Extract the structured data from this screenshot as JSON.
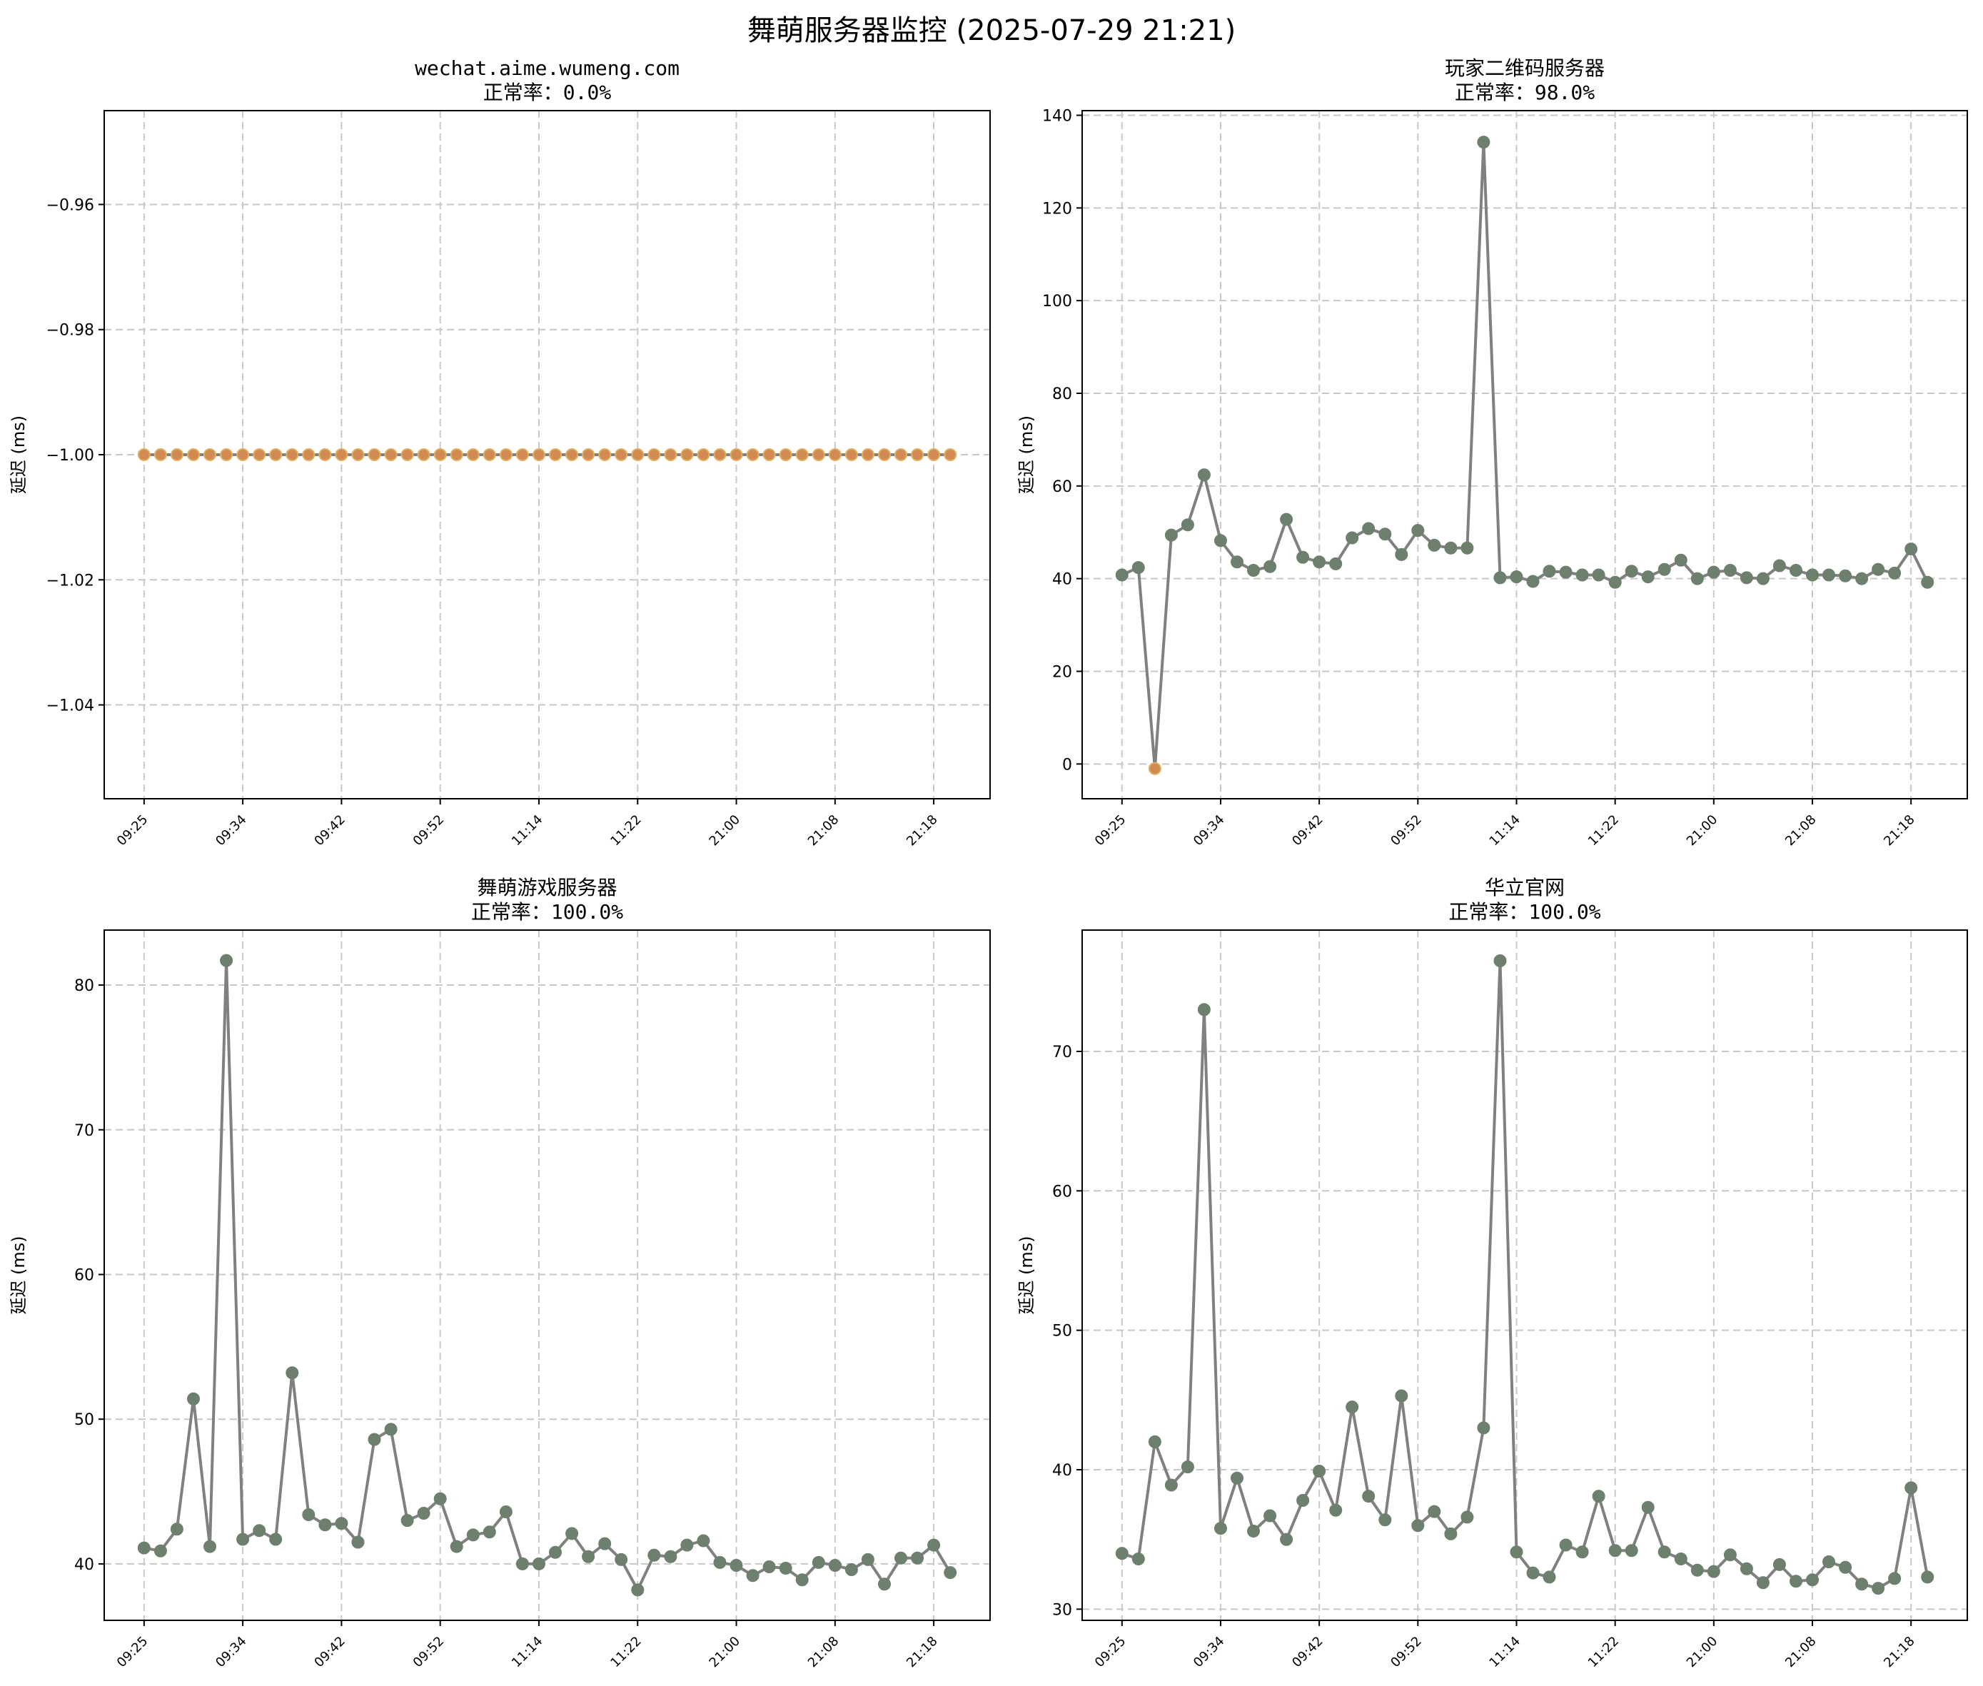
{
  "title": "舞萌服务器监控 (2025-07-29 21:21)",
  "ylabel": "延迟 (ms)",
  "colors": {
    "line": "#808080",
    "marker_ok": "#6d7f6d",
    "marker_fail": "#d08a52",
    "marker_fail_edge": "#e0b060",
    "grid": "#c8c8c8"
  },
  "x_tick_labels": [
    "09:25",
    "09:34",
    "09:42",
    "09:52",
    "11:14",
    "11:22",
    "21:00",
    "21:08",
    "21:18"
  ],
  "chart_data": [
    {
      "type": "line",
      "title": "wechat.aime.wumeng.com",
      "subtitle": "正常率：0.0%",
      "x_count": 50,
      "x_tick_indices": [
        0,
        6,
        12,
        18,
        24,
        30,
        36,
        42,
        48
      ],
      "ylim": [
        -1.055,
        -0.945
      ],
      "yticks": [
        -1.04,
        -1.02,
        -1.0,
        -0.98,
        -0.96
      ],
      "ytick_labels": [
        "−1.04",
        "−1.02",
        "−1.00",
        "−0.98",
        "−0.96"
      ],
      "grid": true,
      "status": "fail",
      "values": [
        -1,
        -1,
        -1,
        -1,
        -1,
        -1,
        -1,
        -1,
        -1,
        -1,
        -1,
        -1,
        -1,
        -1,
        -1,
        -1,
        -1,
        -1,
        -1,
        -1,
        -1,
        -1,
        -1,
        -1,
        -1,
        -1,
        -1,
        -1,
        -1,
        -1,
        -1,
        -1,
        -1,
        -1,
        -1,
        -1,
        -1,
        -1,
        -1,
        -1,
        -1,
        -1,
        -1,
        -1,
        -1,
        -1,
        -1,
        -1,
        -1,
        -1
      ]
    },
    {
      "type": "line",
      "title": "玩家二维码服务器",
      "subtitle": "正常率：98.0%",
      "x_count": 50,
      "x_tick_indices": [
        0,
        6,
        12,
        18,
        24,
        30,
        36,
        42,
        48
      ],
      "ylim": [
        -7.5,
        141
      ],
      "yticks": [
        0,
        20,
        40,
        60,
        80,
        100,
        120,
        140
      ],
      "ytick_labels": [
        "0",
        "20",
        "40",
        "60",
        "80",
        "100",
        "120",
        "140"
      ],
      "grid": true,
      "fail_indices": [
        2
      ],
      "values": [
        40.8,
        42.4,
        -1,
        49.4,
        51.6,
        62.4,
        48.2,
        43.6,
        41.8,
        42.6,
        52.8,
        44.6,
        43.6,
        43.2,
        48.8,
        50.8,
        49.6,
        45.2,
        50.4,
        47.2,
        46.6,
        46.6,
        134.2,
        40.2,
        40.4,
        39.4,
        41.6,
        41.4,
        40.8,
        40.8,
        39.2,
        41.6,
        40.4,
        42.0,
        44.0,
        40.0,
        41.4,
        41.8,
        40.2,
        40.0,
        42.8,
        41.8,
        40.8,
        40.8,
        40.6,
        40.0,
        42.0,
        41.2,
        46.4,
        39.2
      ]
    },
    {
      "type": "line",
      "title": "舞萌游戏服务器",
      "subtitle": "正常率：100.0%",
      "x_count": 50,
      "x_tick_indices": [
        0,
        6,
        12,
        18,
        24,
        30,
        36,
        42,
        48
      ],
      "ylim": [
        36.1,
        83.8
      ],
      "yticks": [
        40,
        50,
        60,
        70,
        80
      ],
      "ytick_labels": [
        "40",
        "50",
        "60",
        "70",
        "80"
      ],
      "grid": true,
      "values": [
        41.1,
        40.9,
        42.4,
        51.4,
        41.2,
        81.7,
        41.7,
        42.3,
        41.7,
        53.2,
        43.4,
        42.7,
        42.8,
        41.5,
        48.6,
        49.3,
        43.0,
        43.5,
        44.5,
        41.2,
        42.0,
        42.2,
        43.6,
        40.0,
        40.0,
        40.8,
        42.1,
        40.5,
        41.4,
        40.3,
        38.2,
        40.6,
        40.5,
        41.3,
        41.6,
        40.1,
        39.9,
        39.2,
        39.8,
        39.7,
        38.9,
        40.1,
        39.9,
        39.6,
        40.3,
        38.6,
        40.4,
        40.4,
        41.3,
        39.4
      ]
    },
    {
      "type": "line",
      "title": "华立官网",
      "subtitle": "正常率：100.0%",
      "x_count": 50,
      "x_tick_indices": [
        0,
        6,
        12,
        18,
        24,
        30,
        36,
        42,
        48
      ],
      "ylim": [
        29.2,
        78.7
      ],
      "yticks": [
        30,
        40,
        50,
        60,
        70
      ],
      "ytick_labels": [
        "30",
        "40",
        "50",
        "60",
        "70"
      ],
      "grid": true,
      "values": [
        34.0,
        33.6,
        42.0,
        38.9,
        40.2,
        73.0,
        35.8,
        39.4,
        35.6,
        36.7,
        35.0,
        37.8,
        39.9,
        37.1,
        44.5,
        38.1,
        36.4,
        45.3,
        36.0,
        37.0,
        35.4,
        36.6,
        43.0,
        76.5,
        34.1,
        32.6,
        32.3,
        34.6,
        34.1,
        38.1,
        34.2,
        34.2,
        37.3,
        34.1,
        33.6,
        32.8,
        32.7,
        33.9,
        32.9,
        31.9,
        33.2,
        32.0,
        32.1,
        33.4,
        33.0,
        31.8,
        31.5,
        32.2,
        38.7,
        32.3
      ]
    }
  ]
}
